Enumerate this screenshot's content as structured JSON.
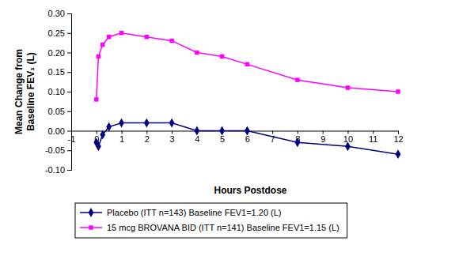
{
  "chart_data": {
    "type": "line",
    "xlabel": "Hours Postdose",
    "ylabel": "Mean Change from Baseline FEV₁ (L)",
    "x": [
      0,
      0.083,
      0.25,
      0.5,
      1,
      2,
      3,
      4,
      5,
      6,
      8,
      10,
      12
    ],
    "xlim": [
      -1,
      12
    ],
    "xticks": [
      -1,
      0,
      1,
      2,
      3,
      4,
      5,
      6,
      7,
      8,
      9,
      10,
      11,
      12
    ],
    "ylim": [
      -0.1,
      0.3
    ],
    "yticks": [
      {
        "value": -0.1,
        "label": "-0.10"
      },
      {
        "value": -0.05,
        "label": "-0.05"
      },
      {
        "value": 0,
        "label": "0.00"
      },
      {
        "value": 0.05,
        "label": "0.05"
      },
      {
        "value": 0.1,
        "label": "0.10"
      },
      {
        "value": 0.15,
        "label": "0.15"
      },
      {
        "value": 0.2,
        "label": "0.20"
      },
      {
        "value": 0.25,
        "label": "0.25"
      },
      {
        "value": 0.3,
        "label": "0.30"
      }
    ],
    "grid": false,
    "legend": "bottom",
    "series": [
      {
        "name": "Placebo (ITT n=143) Baseline FEV1=1.20 (L)",
        "color": "#000080",
        "marker": "diamond",
        "values": [
          -0.03,
          -0.04,
          -0.01,
          0.01,
          0.02,
          0.02,
          0.02,
          0.0,
          0.0,
          0.0,
          -0.03,
          -0.04,
          -0.06
        ]
      },
      {
        "name": "15 mcg BROVANA BID (ITT n=141) Baseline FEV1=1.15 (L)",
        "color": "#ff00ff",
        "marker": "square",
        "values": [
          0.08,
          0.19,
          0.22,
          0.24,
          0.25,
          0.24,
          0.23,
          0.2,
          0.19,
          0.17,
          0.13,
          0.11,
          0.1
        ]
      }
    ]
  }
}
